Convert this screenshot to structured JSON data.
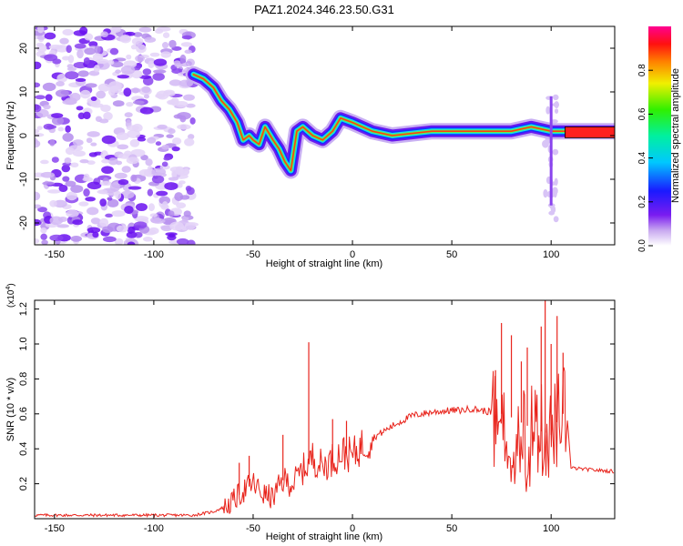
{
  "title": "PAZ1.2024.346.23.50.G31",
  "chart_data": [
    {
      "type": "heatmap",
      "xlabel": "Height of straight line (km)",
      "ylabel": "Frequency (Hz)",
      "xlim": [
        -160,
        132
      ],
      "ylim": [
        -25,
        25
      ],
      "x_ticks": [
        "-150",
        "-100",
        "-50",
        "0",
        "50",
        "100"
      ],
      "y_ticks": [
        "20",
        "10",
        "0",
        "-10",
        "-20"
      ],
      "colorbar": {
        "label": "Normalized spectral amplitude",
        "range": [
          0,
          1
        ],
        "ticks": [
          "0.0",
          "0.2",
          "0.4",
          "0.6",
          "0.8"
        ]
      },
      "ridge": {
        "x": [
          -80,
          -75,
          -70,
          -66,
          -62,
          -58,
          -55,
          -52,
          -50,
          -47,
          -44,
          -40,
          -37,
          -34,
          -31,
          -28,
          -25,
          -20,
          -15,
          -10,
          -6,
          0,
          10,
          20,
          40,
          60,
          80,
          90,
          100,
          132
        ],
        "freq": [
          14,
          13,
          11,
          8,
          6,
          3,
          -1,
          0,
          -1,
          -2,
          2,
          -1,
          -3,
          -6,
          -8,
          1,
          2,
          0,
          -1,
          1,
          4,
          3,
          1,
          0,
          1,
          1,
          1,
          2,
          1,
          1
        ]
      }
    },
    {
      "type": "line",
      "xlabel": "Height of straight line (km)",
      "ylabel": "SNR (10 * v/v)",
      "exponent_label": "(x10",
      "exponent_sup": "4",
      "exponent_close": ")",
      "xlim": [
        -160,
        132
      ],
      "ylim": [
        0,
        1.25
      ],
      "x_ticks": [
        "-150",
        "-100",
        "-50",
        "0",
        "50",
        "100"
      ],
      "y_ticks": [
        "0.2",
        "0.4",
        "0.6",
        "0.8",
        "1.0",
        "1.2"
      ],
      "series_color": "#e8241c",
      "x": [
        -160,
        -80,
        -70,
        -62,
        -55,
        -50,
        -45,
        -40,
        -35,
        -30,
        -25,
        -22,
        -20,
        -15,
        -10,
        -5,
        0,
        5,
        10,
        20,
        30,
        40,
        50,
        55,
        60,
        65,
        70,
        75,
        80,
        85,
        90,
        95,
        100,
        105,
        108,
        110,
        120,
        132
      ],
      "y": [
        0.02,
        0.02,
        0.04,
        0.08,
        0.16,
        0.2,
        0.14,
        0.12,
        0.22,
        0.2,
        0.28,
        0.32,
        0.35,
        0.3,
        0.34,
        0.38,
        0.36,
        0.42,
        0.46,
        0.53,
        0.59,
        0.61,
        0.62,
        0.62,
        0.63,
        0.62,
        0.61,
        0.6,
        0.58,
        0.55,
        0.52,
        0.5,
        0.48,
        0.6,
        0.6,
        0.29,
        0.28,
        0.27
      ],
      "spikes": [
        {
          "x": -57,
          "y": 0.32
        },
        {
          "x": -52,
          "y": 0.36
        },
        {
          "x": -35,
          "y": 0.48
        },
        {
          "x": -22,
          "y": 1.01
        },
        {
          "x": -10,
          "y": 0.57
        },
        {
          "x": -3,
          "y": 0.56
        },
        {
          "x": 72,
          "y": 0.85
        },
        {
          "x": 75,
          "y": 1.12
        },
        {
          "x": 80,
          "y": 1.05
        },
        {
          "x": 85,
          "y": 0.9
        },
        {
          "x": 88,
          "y": 0.98
        },
        {
          "x": 95,
          "y": 1.1
        },
        {
          "x": 97,
          "y": 1.26
        },
        {
          "x": 100,
          "y": 1.0
        },
        {
          "x": 103,
          "y": 1.16
        },
        {
          "x": 106,
          "y": 0.95
        }
      ]
    }
  ]
}
